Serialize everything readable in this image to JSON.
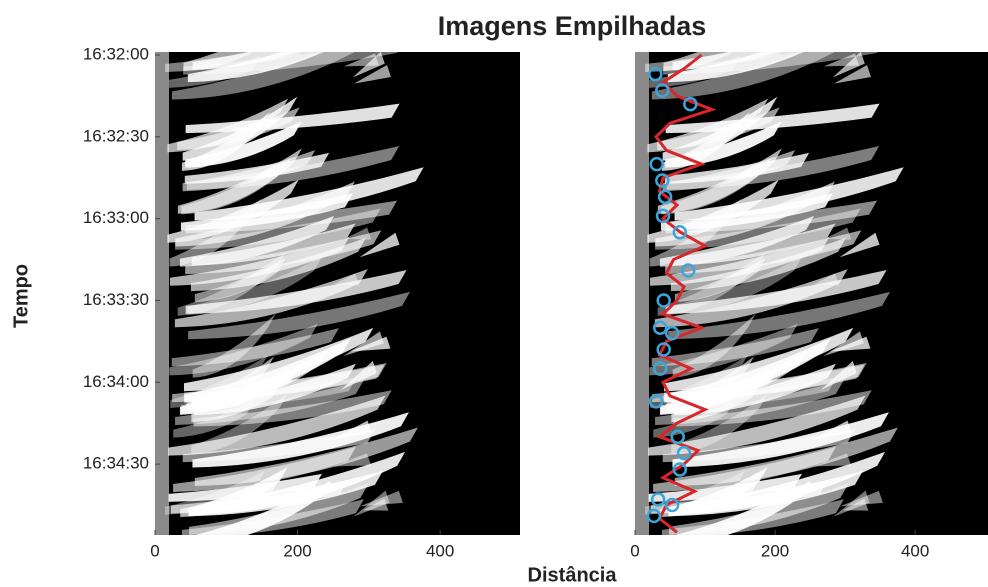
{
  "chart_data": [
    {
      "type": "image",
      "title": "Imagens Empilhadas",
      "xlabel": "Distância",
      "ylabel": "Tempo",
      "xlim": [
        0,
        512
      ],
      "xticks": [
        0,
        200,
        400
      ],
      "ylim": [
        0,
        176
      ],
      "yticks": [
        {
          "value": 0,
          "label": "16:32:00"
        },
        {
          "value": 30,
          "label": "16:32:30"
        },
        {
          "value": 60,
          "label": "16:33:00"
        },
        {
          "value": 90,
          "label": "16:33:30"
        },
        {
          "value": 120,
          "label": "16:34:00"
        },
        {
          "value": 150,
          "label": "16:34:30"
        }
      ]
    },
    {
      "type": "image",
      "xlim": [
        0,
        504
      ],
      "xticks": [
        0,
        200,
        400
      ],
      "ylim": [
        0,
        176
      ],
      "series": [
        {
          "type": "line",
          "color": "#d8262b",
          "x": [
            95,
            70,
            40,
            60,
            110,
            50,
            30,
            45,
            95,
            40,
            35,
            60,
            40,
            65,
            100,
            55,
            45,
            70,
            60,
            40,
            95,
            45,
            35,
            80,
            40,
            50,
            100,
            60,
            35,
            90,
            70,
            40,
            85,
            45,
            35,
            60
          ],
          "y": [
            0,
            5,
            10,
            15,
            20,
            25,
            30,
            35,
            40,
            45,
            50,
            55,
            60,
            65,
            70,
            75,
            80,
            85,
            90,
            95,
            100,
            105,
            110,
            115,
            120,
            125,
            130,
            135,
            140,
            145,
            150,
            155,
            160,
            165,
            170,
            175
          ]
        },
        {
          "type": "scatter",
          "color": "#3aa6dc",
          "x": [
            29,
            39,
            79,
            31,
            39,
            43,
            40,
            64,
            76,
            41,
            36,
            53,
            41,
            36,
            30,
            61,
            70,
            64,
            33,
            53,
            27
          ],
          "y": [
            7,
            13,
            18,
            40,
            46,
            52,
            59,
            65,
            79,
            90,
            100,
            102,
            108,
            115,
            127,
            140,
            146,
            152,
            163,
            165,
            169
          ]
        }
      ]
    }
  ]
}
